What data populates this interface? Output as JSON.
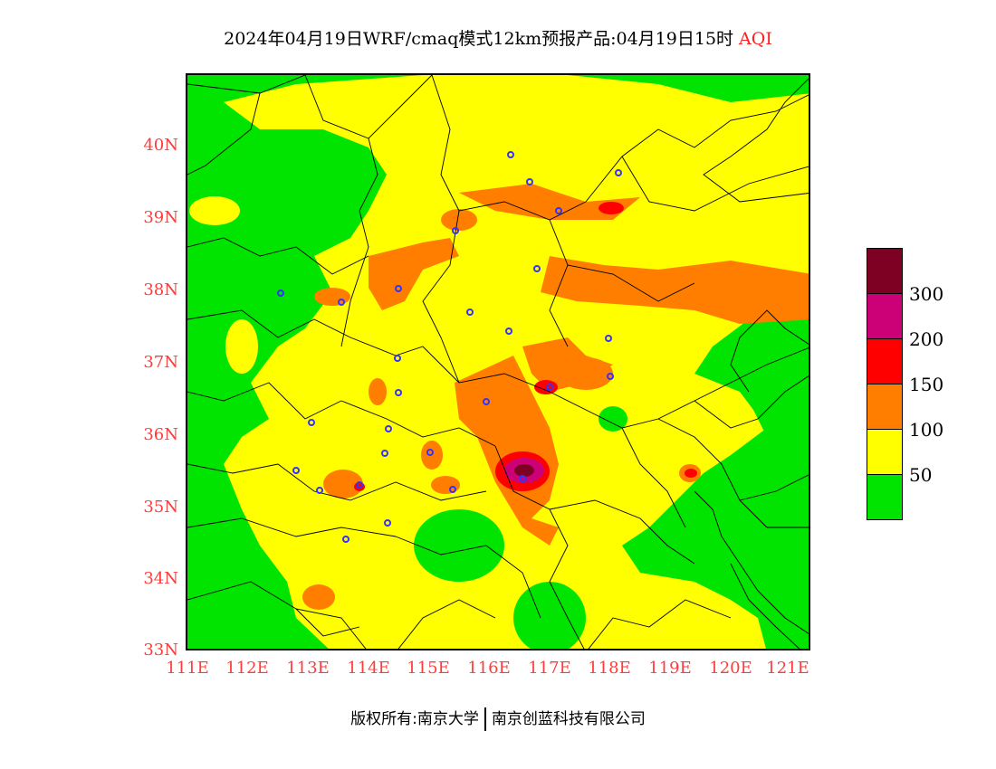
{
  "title": {
    "main": "2024年04月19日WRF/cmaq模式12km预报产品:04月19日15时",
    "variable": "AQI"
  },
  "axes": {
    "lat_labels": [
      "40N",
      "39N",
      "38N",
      "37N",
      "36N",
      "35N",
      "34N",
      "33N"
    ],
    "lat_values": [
      40,
      39,
      38,
      37,
      36,
      35,
      34,
      33
    ],
    "lon_labels": [
      "111E",
      "112E",
      "113E",
      "114E",
      "115E",
      "116E",
      "117E",
      "118E",
      "119E",
      "120E",
      "121E"
    ],
    "lon_values": [
      111,
      112,
      113,
      114,
      115,
      116,
      117,
      118,
      119,
      120,
      121
    ],
    "lon_range": [
      111,
      121.4
    ],
    "lat_range": [
      33,
      40.95
    ]
  },
  "legend": {
    "levels": [
      {
        "label": "",
        "color": "#7e0023"
      },
      {
        "label": "300",
        "color": "#cc0077"
      },
      {
        "label": "200",
        "color": "#ff0000"
      },
      {
        "label": "150",
        "color": "#ff7e00"
      },
      {
        "label": "100",
        "color": "#ffff00"
      },
      {
        "label": "50",
        "color": "#00e400"
      }
    ]
  },
  "footer": {
    "left": "版权所有:南京大学",
    "right": "南京创蓝科技有限公司"
  },
  "colors": {
    "good": "#00e400",
    "moderate": "#ffff00",
    "sensitive": "#ff7e00",
    "unhealthy": "#ff0000",
    "very_unhealthy": "#cc0077",
    "hazardous": "#7e0023",
    "axis_label": "#ff3b3b",
    "station_marker": "#3333ff"
  }
}
